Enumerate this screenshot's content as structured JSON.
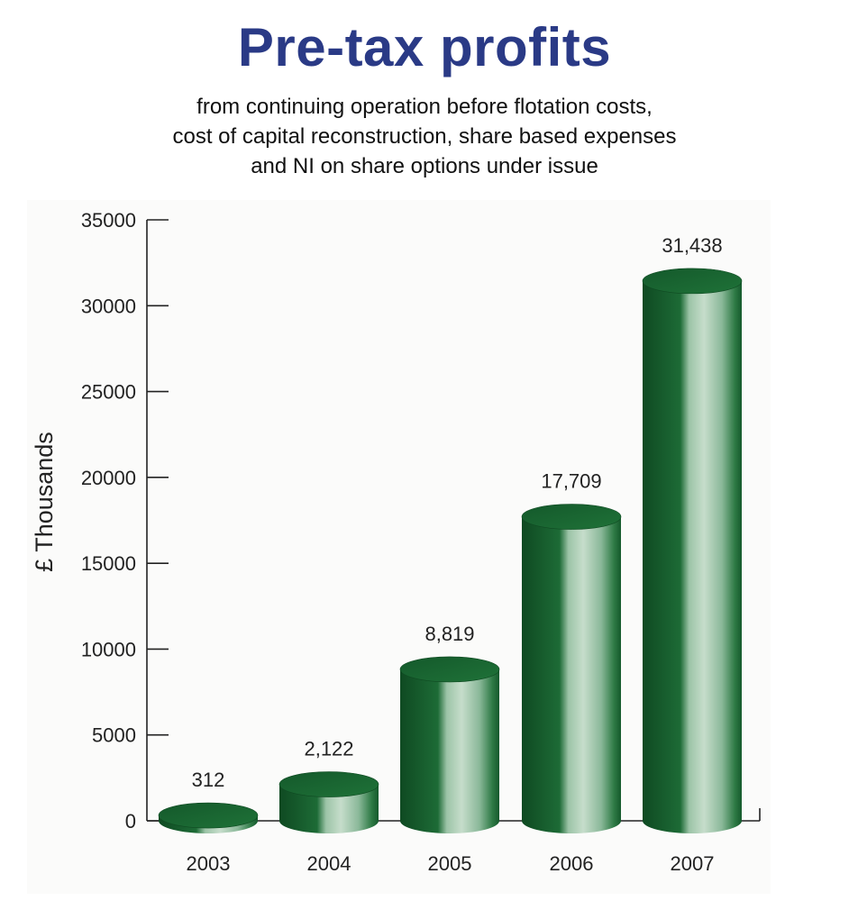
{
  "chart_data": {
    "type": "bar",
    "title": "Pre-tax profits",
    "subtitle_lines": [
      "from continuing operation before flotation costs,",
      "cost of capital reconstruction, share based expenses",
      "and NI on share options under issue"
    ],
    "xlabel": "",
    "ylabel": "£ Thousands",
    "ylim": [
      0,
      35000
    ],
    "yticks": [
      "0",
      "5000",
      "10000",
      "15000",
      "20000",
      "25000",
      "30000",
      "35000"
    ],
    "categories": [
      "2003",
      "2004",
      "2005",
      "2006",
      "2007"
    ],
    "values": [
      312,
      2122,
      8819,
      17709,
      31438
    ],
    "data_labels": [
      "312",
      "2,122",
      "8,819",
      "17,709",
      "31,438"
    ],
    "grid": false,
    "legend": "none",
    "bar_style": "3d-cylinder",
    "colors": {
      "bar": "#1d6b36",
      "bar_dark": "#0f4a22",
      "bar_highlight": "#b4d2bd",
      "title": "#2a3a86"
    }
  }
}
